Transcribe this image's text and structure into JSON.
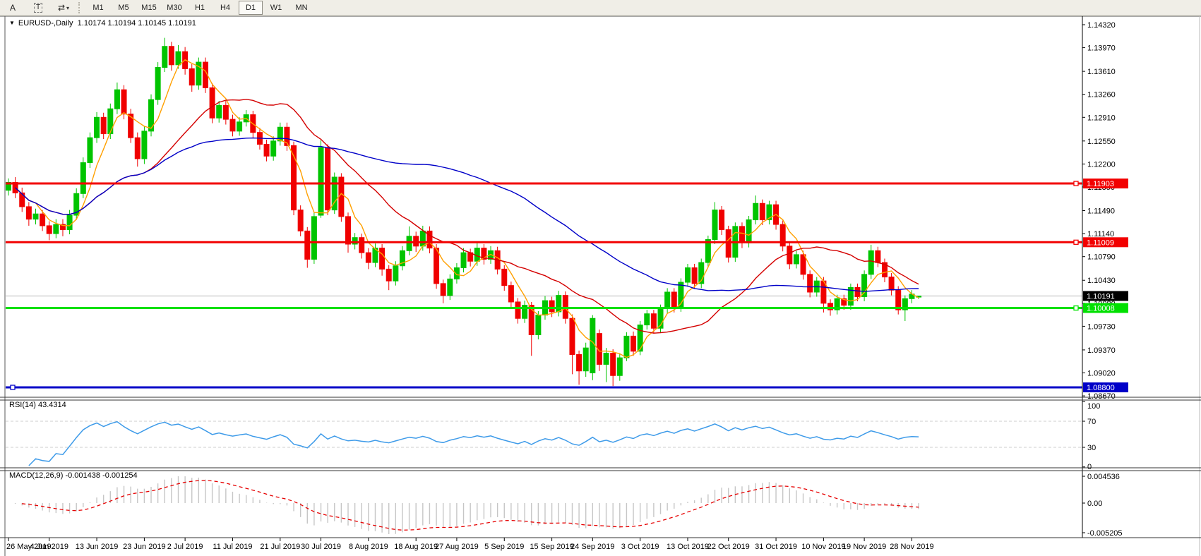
{
  "toolbar": {
    "letter_tool": "A",
    "text_tool": "T",
    "cursor_tool_icon": "⇄",
    "dropdown_caret": "▾",
    "timeframes": [
      "M1",
      "M5",
      "M15",
      "M30",
      "H1",
      "H4",
      "D1",
      "W1",
      "MN"
    ],
    "active_timeframe": "D1"
  },
  "chart_header": {
    "collapse_arrow": "▼",
    "symbol": "EURUSD-,Daily",
    "ohlc": "1.10174 1.10194 1.10145 1.10191"
  },
  "price_axis": {
    "tick_labels": [
      "1.14320",
      "1.13970",
      "1.13610",
      "1.13260",
      "1.12910",
      "1.12550",
      "1.12200",
      "1.11850",
      "1.11490",
      "1.11140",
      "1.10790",
      "1.10430",
      "1.10080",
      "1.09730",
      "1.09370",
      "1.09020",
      "1.08670"
    ],
    "current_price_label": "1.10191",
    "current_price": 1.10191
  },
  "hlines": [
    {
      "name": "resistance-1",
      "price": 1.11903,
      "label": "1.11903",
      "color": "#f20000",
      "marker": "right"
    },
    {
      "name": "resistance-2",
      "price": 1.11009,
      "label": "1.11009",
      "color": "#f20000",
      "marker": "right"
    },
    {
      "name": "support-1",
      "price": 1.10008,
      "label": "1.10008",
      "color": "#00e000",
      "marker": "right"
    },
    {
      "name": "support-2",
      "price": 1.088,
      "label": "1.08800",
      "color": "#0000c8",
      "marker": "left"
    }
  ],
  "rsi_panel": {
    "title": "RSI(14) 43.4314",
    "period": 14,
    "value": 43.4314,
    "axis_labels": [
      {
        "text": "100",
        "v": 100
      },
      {
        "text": "70",
        "v": 70
      },
      {
        "text": "30",
        "v": 30
      },
      {
        "text": "0",
        "v": 0
      }
    ],
    "levels_dashed": [
      70,
      30
    ],
    "line_color": "#3e9be9"
  },
  "macd_panel": {
    "title": "MACD(12,26,9) -0.001438 -0.001254",
    "fast": 12,
    "slow": 26,
    "signal": 9,
    "macd_value": -0.001438,
    "signal_value": -0.001254,
    "axis_labels": [
      {
        "text": "0.004536",
        "pos": "top"
      },
      {
        "text": "0.00",
        "pos": "zero"
      },
      {
        "text": "-0.005205",
        "pos": "bottom"
      }
    ],
    "histogram_color": "#c6c6c6",
    "signal_color": "#e60000"
  },
  "time_axis": {
    "tick_labels": [
      {
        "text": "26 May 2019",
        "bar": 0
      },
      {
        "text": "4 Jun 2019",
        "bar": 6
      },
      {
        "text": "13 Jun 2019",
        "bar": 13
      },
      {
        "text": "23 Jun 2019",
        "bar": 20
      },
      {
        "text": "2 Jul 2019",
        "bar": 26
      },
      {
        "text": "11 Jul 2019",
        "bar": 33
      },
      {
        "text": "21 Jul 2019",
        "bar": 40
      },
      {
        "text": "30 Jul 2019",
        "bar": 46
      },
      {
        "text": "8 Aug 2019",
        "bar": 53
      },
      {
        "text": "18 Aug 2019",
        "bar": 60
      },
      {
        "text": "27 Aug 2019",
        "bar": 66
      },
      {
        "text": "5 Sep 2019",
        "bar": 73
      },
      {
        "text": "15 Sep 2019",
        "bar": 80
      },
      {
        "text": "24 Sep 2019",
        "bar": 86
      },
      {
        "text": "3 Oct 2019",
        "bar": 93
      },
      {
        "text": "13 Oct 2019",
        "bar": 100
      },
      {
        "text": "22 Oct 2019",
        "bar": 106
      },
      {
        "text": "31 Oct 2019",
        "bar": 113
      },
      {
        "text": "10 Nov 2019",
        "bar": 120
      },
      {
        "text": "19 Nov 2019",
        "bar": 126
      },
      {
        "text": "28 Nov 2019",
        "bar": 133
      }
    ]
  },
  "chart_data": {
    "type": "candlestick",
    "symbol": "EURUSD",
    "timeframe": "Daily",
    "ylim": [
      1.0867,
      1.1432
    ],
    "up_color": "#00c400",
    "down_color": "#f00000",
    "moving_averages": [
      {
        "name": "ma-fast",
        "period": 5,
        "color": "#ffa000"
      },
      {
        "name": "ma-mid",
        "period": 21,
        "color": "#d40000"
      },
      {
        "name": "ma-slow",
        "period": 55,
        "color": "#0000c8"
      }
    ],
    "candles_ohlc": [
      [
        1.118,
        1.1198,
        1.1172,
        1.1192
      ],
      [
        1.1192,
        1.12,
        1.1168,
        1.1176
      ],
      [
        1.1176,
        1.1184,
        1.1147,
        1.1155
      ],
      [
        1.1155,
        1.1162,
        1.1126,
        1.1136
      ],
      [
        1.1136,
        1.1152,
        1.1128,
        1.1144
      ],
      [
        1.1144,
        1.115,
        1.1118,
        1.1126
      ],
      [
        1.1126,
        1.1133,
        1.1104,
        1.1114
      ],
      [
        1.1114,
        1.1136,
        1.1107,
        1.1128
      ],
      [
        1.1128,
        1.1136,
        1.111,
        1.112
      ],
      [
        1.112,
        1.115,
        1.1113,
        1.1142
      ],
      [
        1.1142,
        1.1183,
        1.1135,
        1.1175
      ],
      [
        1.1175,
        1.123,
        1.1168,
        1.1222
      ],
      [
        1.1222,
        1.1268,
        1.1214,
        1.126
      ],
      [
        1.126,
        1.1299,
        1.1252,
        1.1291
      ],
      [
        1.1291,
        1.1298,
        1.1258,
        1.1266
      ],
      [
        1.1266,
        1.1312,
        1.1258,
        1.1304
      ],
      [
        1.1304,
        1.1344,
        1.1296,
        1.1333
      ],
      [
        1.1333,
        1.134,
        1.1288,
        1.1296
      ],
      [
        1.1296,
        1.1304,
        1.1252,
        1.126
      ],
      [
        1.126,
        1.1268,
        1.1216,
        1.1228
      ],
      [
        1.1228,
        1.1278,
        1.122,
        1.127
      ],
      [
        1.127,
        1.1326,
        1.1262,
        1.1318
      ],
      [
        1.1318,
        1.1375,
        1.131,
        1.1367
      ],
      [
        1.1367,
        1.1412,
        1.136,
        1.1399
      ],
      [
        1.1399,
        1.1406,
        1.1362,
        1.1371
      ],
      [
        1.1371,
        1.1401,
        1.1365,
        1.1391
      ],
      [
        1.1391,
        1.1398,
        1.1356,
        1.1365
      ],
      [
        1.1365,
        1.1372,
        1.133,
        1.134
      ],
      [
        1.134,
        1.1382,
        1.1333,
        1.1375
      ],
      [
        1.1375,
        1.1382,
        1.1328,
        1.1336
      ],
      [
        1.1336,
        1.1343,
        1.1282,
        1.129
      ],
      [
        1.129,
        1.1316,
        1.1283,
        1.1309
      ],
      [
        1.1309,
        1.1316,
        1.128,
        1.1288
      ],
      [
        1.1288,
        1.1295,
        1.1262,
        1.127
      ],
      [
        1.127,
        1.1291,
        1.1263,
        1.1284
      ],
      [
        1.1284,
        1.1302,
        1.1277,
        1.1295
      ],
      [
        1.1295,
        1.1301,
        1.126,
        1.1268
      ],
      [
        1.1268,
        1.1275,
        1.1242,
        1.125
      ],
      [
        1.125,
        1.1257,
        1.1224,
        1.1232
      ],
      [
        1.1232,
        1.1262,
        1.1225,
        1.1255
      ],
      [
        1.1255,
        1.1283,
        1.1248,
        1.1276
      ],
      [
        1.1276,
        1.1283,
        1.124,
        1.1248
      ],
      [
        1.1248,
        1.1254,
        1.1142,
        1.115
      ],
      [
        1.115,
        1.1157,
        1.111,
        1.1118
      ],
      [
        1.1118,
        1.1124,
        1.1062,
        1.1075
      ],
      [
        1.1075,
        1.1146,
        1.1068,
        1.114
      ],
      [
        1.1142,
        1.1256,
        1.1138,
        1.1245
      ],
      [
        1.1245,
        1.125,
        1.1142,
        1.115
      ],
      [
        1.115,
        1.1207,
        1.1144,
        1.12
      ],
      [
        1.12,
        1.1206,
        1.1132,
        1.114
      ],
      [
        1.114,
        1.1146,
        1.1085,
        1.1098
      ],
      [
        1.1098,
        1.1115,
        1.109,
        1.1108
      ],
      [
        1.1108,
        1.1114,
        1.1076,
        1.1085
      ],
      [
        1.1085,
        1.1092,
        1.106,
        1.107
      ],
      [
        1.107,
        1.1099,
        1.1063,
        1.1092
      ],
      [
        1.1092,
        1.1098,
        1.105,
        1.106
      ],
      [
        1.106,
        1.1066,
        1.1028,
        1.1042
      ],
      [
        1.1042,
        1.1072,
        1.1035,
        1.1065
      ],
      [
        1.1065,
        1.1095,
        1.1058,
        1.1088
      ],
      [
        1.1088,
        1.1125,
        1.1081,
        1.111
      ],
      [
        1.111,
        1.1117,
        1.1086,
        1.1095
      ],
      [
        1.1095,
        1.1126,
        1.1088,
        1.1118
      ],
      [
        1.1118,
        1.1125,
        1.1084,
        1.1092
      ],
      [
        1.1092,
        1.1098,
        1.103,
        1.1038
      ],
      [
        1.1038,
        1.1044,
        1.1008,
        1.102
      ],
      [
        1.102,
        1.1052,
        1.1013,
        1.1045
      ],
      [
        1.1045,
        1.1069,
        1.1038,
        1.1062
      ],
      [
        1.1062,
        1.1092,
        1.1055,
        1.1085
      ],
      [
        1.1085,
        1.1091,
        1.1064,
        1.1072
      ],
      [
        1.1072,
        1.1102,
        1.1065,
        1.1092
      ],
      [
        1.1092,
        1.1098,
        1.1067,
        1.1075
      ],
      [
        1.1075,
        1.1095,
        1.1068,
        1.1088
      ],
      [
        1.1088,
        1.1094,
        1.1052,
        1.106
      ],
      [
        1.106,
        1.1066,
        1.1027,
        1.1035
      ],
      [
        1.1035,
        1.1041,
        1.1002,
        1.101
      ],
      [
        1.101,
        1.1016,
        1.0977,
        1.0985
      ],
      [
        1.0985,
        1.1012,
        1.0978,
        1.1005
      ],
      [
        1.1005,
        1.101,
        1.0928,
        1.096
      ],
      [
        1.096,
        1.0996,
        1.0953,
        1.099
      ],
      [
        1.099,
        1.1019,
        1.0983,
        1.1012
      ],
      [
        1.1012,
        1.1018,
        1.0987,
        1.0995
      ],
      [
        1.0995,
        1.1027,
        1.0988,
        1.102
      ],
      [
        1.102,
        1.1026,
        1.0977,
        1.0985
      ],
      [
        1.0985,
        1.0991,
        1.09,
        1.093
      ],
      [
        1.093,
        1.0936,
        1.0884,
        1.0905
      ],
      [
        1.0905,
        1.0948,
        1.0896,
        1.094
      ],
      [
        1.0902,
        1.099,
        1.0891,
        1.0985
      ],
      [
        1.0962,
        1.0968,
        1.0905,
        1.0915
      ],
      [
        1.0915,
        1.094,
        1.0888,
        1.0932
      ],
      [
        1.0932,
        1.0938,
        1.0882,
        1.0898
      ],
      [
        1.0898,
        1.0932,
        1.089,
        1.0925
      ],
      [
        1.0925,
        1.0964,
        1.092,
        1.0958
      ],
      [
        1.0958,
        1.0965,
        1.0928,
        1.0935
      ],
      [
        1.0935,
        1.0981,
        1.0929,
        1.0975
      ],
      [
        1.0975,
        1.0998,
        1.0968,
        1.0992
      ],
      [
        1.0992,
        1.0998,
        1.0962,
        1.097
      ],
      [
        1.097,
        1.1006,
        1.0963,
        1.1
      ],
      [
        1.1,
        1.1031,
        1.0993,
        1.1025
      ],
      [
        1.1025,
        1.1031,
        1.0994,
        1.1002
      ],
      [
        1.1002,
        1.1046,
        1.0995,
        1.104
      ],
      [
        1.104,
        1.1068,
        1.1033,
        1.1062
      ],
      [
        1.1062,
        1.1068,
        1.103,
        1.1038
      ],
      [
        1.1038,
        1.1076,
        1.1031,
        1.107
      ],
      [
        1.107,
        1.1111,
        1.1063,
        1.1105
      ],
      [
        1.1105,
        1.1162,
        1.1098,
        1.115
      ],
      [
        1.115,
        1.1156,
        1.1112,
        1.112
      ],
      [
        1.112,
        1.1126,
        1.107,
        1.1078
      ],
      [
        1.1078,
        1.1131,
        1.1071,
        1.1125
      ],
      [
        1.1125,
        1.1131,
        1.1092,
        1.11
      ],
      [
        1.11,
        1.1141,
        1.1093,
        1.1135
      ],
      [
        1.1135,
        1.1172,
        1.1128,
        1.116
      ],
      [
        1.116,
        1.1166,
        1.1127,
        1.1135
      ],
      [
        1.1135,
        1.1164,
        1.1128,
        1.1158
      ],
      [
        1.1158,
        1.1164,
        1.112,
        1.1128
      ],
      [
        1.1128,
        1.1134,
        1.1087,
        1.1095
      ],
      [
        1.1095,
        1.1101,
        1.106,
        1.1068
      ],
      [
        1.1068,
        1.1088,
        1.1061,
        1.1082
      ],
      [
        1.1082,
        1.1088,
        1.1044,
        1.1052
      ],
      [
        1.1052,
        1.1058,
        1.1017,
        1.1025
      ],
      [
        1.1025,
        1.1048,
        1.1018,
        1.1042
      ],
      [
        1.1042,
        1.1048,
        1.0994,
        1.1008
      ],
      [
        1.1008,
        1.1014,
        1.0989,
        1.0998
      ],
      [
        1.0998,
        1.1021,
        1.0991,
        1.1015
      ],
      [
        1.1015,
        1.1021,
        1.0998,
        1.1005
      ],
      [
        1.1005,
        1.1038,
        1.0998,
        1.1032
      ],
      [
        1.1032,
        1.1038,
        1.1011,
        1.1018
      ],
      [
        1.1018,
        1.1058,
        1.1011,
        1.1052
      ],
      [
        1.1052,
        1.1097,
        1.1045,
        1.1088
      ],
      [
        1.1088,
        1.1094,
        1.1063,
        1.107
      ],
      [
        1.107,
        1.1076,
        1.104,
        1.1048
      ],
      [
        1.1048,
        1.1054,
        1.102,
        1.1028
      ],
      [
        1.1028,
        1.1034,
        1.0991,
        1.0998
      ],
      [
        1.0998,
        1.102,
        1.0981,
        1.1015
      ],
      [
        1.1015,
        1.1028,
        1.1008,
        1.1022
      ],
      [
        1.10174,
        1.10194,
        1.10145,
        1.10191
      ]
    ]
  }
}
